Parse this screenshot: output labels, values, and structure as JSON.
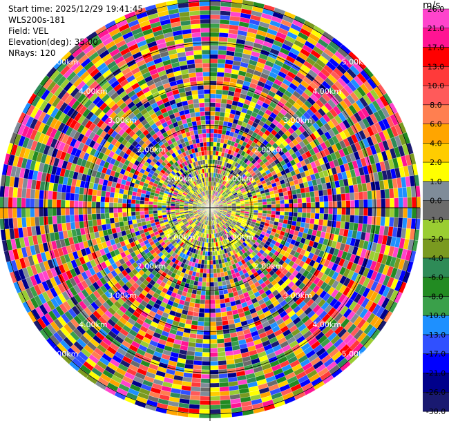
{
  "header": {
    "start_time": "Start time: 2025/12/29 19:41:45",
    "instrument": "WLS200s-181",
    "field": "Field: VEL",
    "elevation": "Elevation(deg): 35.00",
    "nrays": "NRays: 120"
  },
  "chart_data": {
    "type": "heatmap",
    "projection": "polar-ppi",
    "field": "VEL",
    "nrays": 120,
    "range_ring_labels": [
      "1.00km",
      "2.00km",
      "3.00km",
      "4.00km",
      "5.00km"
    ],
    "range_rings_km": [
      1,
      2,
      3,
      4,
      5
    ],
    "max_range_km": 5.1,
    "colorbar": {
      "unit": "m/s",
      "ticks": [
        "26.0",
        "21.0",
        "17.0",
        "13.0",
        "10.0",
        "8.0",
        "6.0",
        "4.0",
        "2.0",
        "1.0",
        "0.0",
        "-1.0",
        "-2.0",
        "-4.0",
        "-6.0",
        "-8.0",
        "-10.0",
        "-13.0",
        "-17.0",
        "-21.0",
        "-26.0",
        "-30.0"
      ],
      "colors": [
        "#ff44cc",
        "#ff1493",
        "#ff0000",
        "#ff3a3a",
        "#ff5a5a",
        "#ff7f50",
        "#ffa500",
        "#ffcc00",
        "#ffff00",
        "#7f8c99",
        "#6b6b6b",
        "#9acd32",
        "#7a9a20",
        "#2e8b57",
        "#228b22",
        "#3aa04a",
        "#1e90ff",
        "#3050ff",
        "#0000ff",
        "#00008b",
        "#191970"
      ]
    },
    "inner_zone": {
      "range_km": 1.3,
      "dominant_colors": [
        "#9acd32",
        "#6b6b6b",
        "#ffff00"
      ]
    }
  }
}
